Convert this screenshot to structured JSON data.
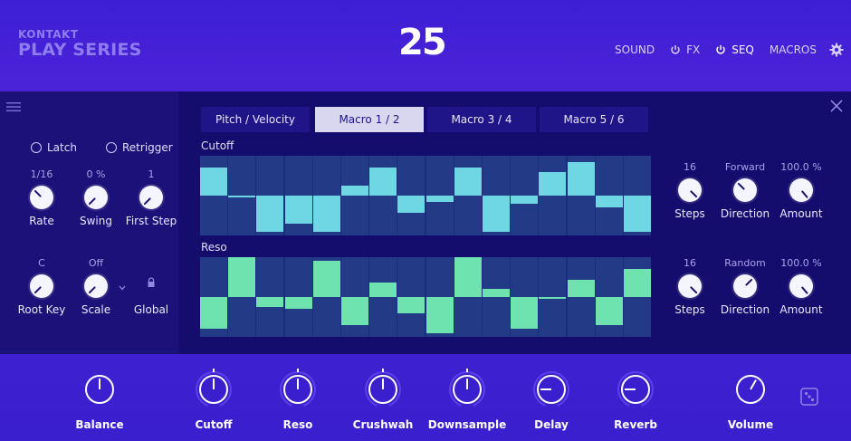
{
  "header": {
    "brand_line1": "KONTAKT",
    "brand_line2": "PLAY SERIES",
    "logo": "25",
    "nav": [
      {
        "label": "SOUND",
        "icon": "",
        "active": false
      },
      {
        "label": "FX",
        "icon": "power-icon",
        "active": false
      },
      {
        "label": "SEQ",
        "icon": "power-icon",
        "active": true
      },
      {
        "label": "MACROS",
        "icon": "",
        "active": false
      }
    ],
    "settings_icon": "gear-icon"
  },
  "left": {
    "latch": "Latch",
    "retrigger": "Retrigger",
    "rate": {
      "value": "1/16",
      "label": "Rate"
    },
    "swing": {
      "value": "0 %",
      "label": "Swing"
    },
    "first_step": {
      "value": "1",
      "label": "First Step"
    },
    "root_key": {
      "value": "C",
      "label": "Root Key"
    },
    "scale": {
      "value": "Off",
      "label": "Scale"
    },
    "global": {
      "label": "Global"
    }
  },
  "tabs": [
    {
      "label": "Pitch  /  Velocity",
      "active": false
    },
    {
      "label": "Macro 1  /  2",
      "active": true
    },
    {
      "label": "Macro 3  /  4",
      "active": false
    },
    {
      "label": "Macro 5  /  6",
      "active": false
    }
  ],
  "lanes": {
    "cutoff": {
      "label": "Cutoff",
      "color": "#6fd6e4",
      "steps": [
        0.35,
        0.0,
        -0.45,
        -0.35,
        -0.45,
        0.12,
        0.35,
        -0.22,
        -0.08,
        0.35,
        -0.45,
        -0.1,
        0.3,
        0.42,
        -0.15,
        -0.45
      ],
      "controls": {
        "steps": {
          "value": "16",
          "label": "Steps"
        },
        "direction": {
          "value": "Forward",
          "label": "Direction"
        },
        "amount": {
          "value": "100.0 %",
          "label": "Amount"
        }
      }
    },
    "reso": {
      "label": "Reso",
      "color": "#6ee3b0",
      "steps": [
        -0.4,
        0.5,
        -0.12,
        -0.15,
        0.45,
        -0.35,
        0.18,
        -0.2,
        -0.45,
        0.5,
        0.1,
        -0.4,
        0.0,
        0.22,
        -0.35,
        0.35
      ],
      "controls": {
        "steps": {
          "value": "16",
          "label": "Steps"
        },
        "direction": {
          "value": "Random",
          "label": "Direction"
        },
        "amount": {
          "value": "100.0 %",
          "label": "Amount"
        }
      }
    }
  },
  "bottom": {
    "knobs": [
      {
        "label": "Balance"
      },
      {
        "label": "Cutoff"
      },
      {
        "label": "Reso"
      },
      {
        "label": "Crushwah"
      },
      {
        "label": "Downsample"
      },
      {
        "label": "Delay"
      },
      {
        "label": "Reverb"
      },
      {
        "label": "Volume"
      }
    ],
    "dice_icon": "dice-icon"
  }
}
